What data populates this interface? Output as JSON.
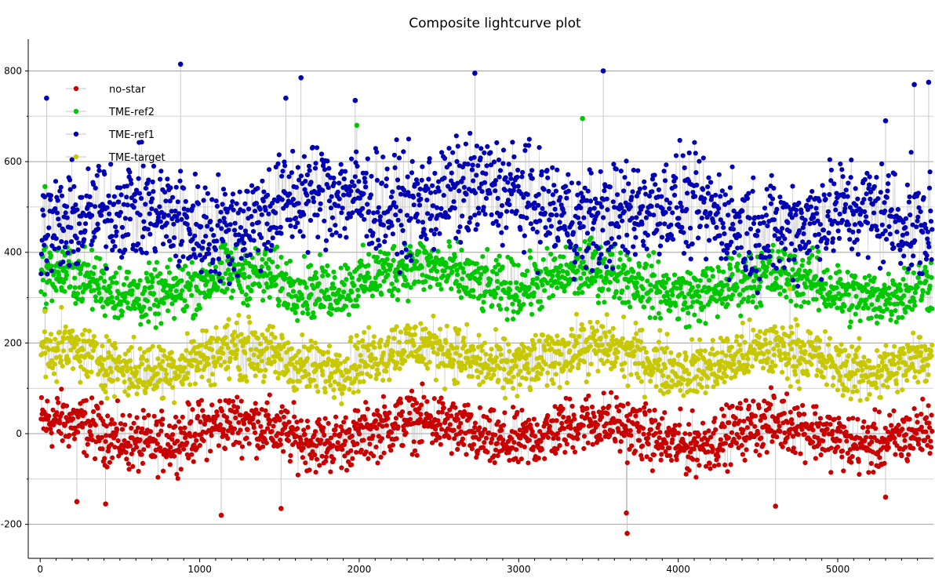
{
  "chart_data": {
    "type": "scatter",
    "title": "Composite lightcurve plot",
    "xlabel": "",
    "ylabel": "",
    "xlim": [
      -75,
      5600
    ],
    "ylim": [
      -275,
      870
    ],
    "x_ticks": [
      0,
      1000,
      2000,
      3000,
      4000,
      5000
    ],
    "y_ticks": [
      -200,
      0,
      200,
      400,
      600,
      800
    ],
    "minor_y_ticks": [
      -100,
      100,
      300,
      500,
      700
    ],
    "grid": true,
    "legend_position": "top-left",
    "series": [
      {
        "name": "no-star",
        "color": "#c80000",
        "trend": [
          [
            0,
            5
          ],
          [
            1000,
            0
          ],
          [
            2000,
            5
          ],
          [
            3000,
            5
          ],
          [
            4000,
            0
          ],
          [
            5000,
            0
          ],
          [
            5600,
            0
          ]
        ],
        "spread": 45,
        "sample_points": [
          [
            3680,
            -220
          ],
          [
            3675,
            -175
          ],
          [
            1135,
            -180
          ],
          [
            1510,
            -165
          ],
          [
            4610,
            -160
          ],
          [
            5300,
            -140
          ],
          [
            410,
            -155
          ],
          [
            230,
            -150
          ]
        ]
      },
      {
        "name": "TME-ref2",
        "color": "#00c800",
        "trend": [
          [
            0,
            330
          ],
          [
            1000,
            325
          ],
          [
            2000,
            345
          ],
          [
            3000,
            345
          ],
          [
            4000,
            330
          ],
          [
            5000,
            325
          ],
          [
            5600,
            320
          ]
        ],
        "spread": 45,
        "sample_points": [
          [
            1985,
            680
          ],
          [
            3400,
            695
          ],
          [
            30,
            545
          ]
        ]
      },
      {
        "name": "TME-ref1",
        "color": "#0000b4",
        "trend": [
          [
            0,
            480
          ],
          [
            1000,
            470
          ],
          [
            2000,
            520
          ],
          [
            2500,
            530
          ],
          [
            3000,
            510
          ],
          [
            4000,
            480
          ],
          [
            5000,
            470
          ],
          [
            5600,
            470
          ]
        ],
        "spread": 80,
        "sample_points": [
          [
            880,
            815
          ],
          [
            3530,
            800
          ],
          [
            2725,
            795
          ],
          [
            1635,
            785
          ],
          [
            5570,
            775
          ],
          [
            5480,
            770
          ],
          [
            40,
            740
          ],
          [
            1540,
            740
          ],
          [
            1975,
            735
          ],
          [
            5300,
            690
          ]
        ]
      },
      {
        "name": "TME-target",
        "color": "#c8c800",
        "trend": [
          [
            0,
            165
          ],
          [
            1000,
            160
          ],
          [
            2000,
            170
          ],
          [
            3000,
            170
          ],
          [
            4000,
            165
          ],
          [
            5000,
            160
          ],
          [
            5600,
            160
          ]
        ],
        "spread": 45,
        "sample_points": [
          [
            30,
            270
          ],
          [
            4700,
            320
          ]
        ]
      }
    ]
  }
}
